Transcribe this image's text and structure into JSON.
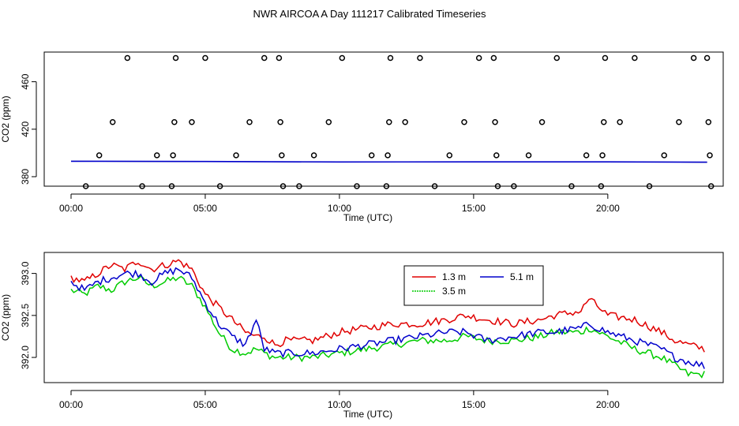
{
  "page_title": "NWR AIRCOA A  Day 111217  Calibrated Timeseries",
  "colors": {
    "red": "#e00000",
    "green": "#00cc00",
    "blue": "#0000cc",
    "axis": "#000000"
  },
  "chart_data": [
    {
      "type": "scatter",
      "title": "",
      "xlabel": "Time (UTC)",
      "ylabel": "CO2 (ppm)",
      "xlim": [
        -1.0,
        24.3
      ],
      "ylim": [
        372,
        485
      ],
      "x_ticks": [
        0,
        5,
        10,
        15,
        20
      ],
      "x_tick_labels": [
        "00:00",
        "05:00",
        "10:00",
        "15:00",
        "20:00"
      ],
      "y_ticks": [
        380,
        420,
        460
      ],
      "y_tick_labels": [
        "380",
        "420",
        "460"
      ],
      "cal_points": [
        {
          "x": 0.55,
          "y": 372
        },
        {
          "x": 1.05,
          "y": 398
        },
        {
          "x": 1.55,
          "y": 426
        },
        {
          "x": 2.1,
          "y": 480
        },
        {
          "x": 2.65,
          "y": 372
        },
        {
          "x": 3.2,
          "y": 398
        },
        {
          "x": 3.75,
          "y": 372
        },
        {
          "x": 3.8,
          "y": 398
        },
        {
          "x": 3.85,
          "y": 426
        },
        {
          "x": 3.9,
          "y": 480
        },
        {
          "x": 4.5,
          "y": 426
        },
        {
          "x": 5.0,
          "y": 480
        },
        {
          "x": 5.55,
          "y": 372
        },
        {
          "x": 6.15,
          "y": 398
        },
        {
          "x": 6.65,
          "y": 426
        },
        {
          "x": 7.2,
          "y": 480
        },
        {
          "x": 7.75,
          "y": 480
        },
        {
          "x": 7.8,
          "y": 426
        },
        {
          "x": 7.85,
          "y": 398
        },
        {
          "x": 7.9,
          "y": 372
        },
        {
          "x": 8.5,
          "y": 372
        },
        {
          "x": 9.05,
          "y": 398
        },
        {
          "x": 9.6,
          "y": 426
        },
        {
          "x": 10.1,
          "y": 480
        },
        {
          "x": 10.65,
          "y": 372
        },
        {
          "x": 11.2,
          "y": 398
        },
        {
          "x": 11.75,
          "y": 372
        },
        {
          "x": 11.8,
          "y": 398
        },
        {
          "x": 11.85,
          "y": 426
        },
        {
          "x": 11.9,
          "y": 480
        },
        {
          "x": 12.45,
          "y": 426
        },
        {
          "x": 13.0,
          "y": 480
        },
        {
          "x": 13.55,
          "y": 372
        },
        {
          "x": 14.1,
          "y": 398
        },
        {
          "x": 14.65,
          "y": 426
        },
        {
          "x": 15.2,
          "y": 480
        },
        {
          "x": 15.75,
          "y": 480
        },
        {
          "x": 15.8,
          "y": 426
        },
        {
          "x": 15.85,
          "y": 398
        },
        {
          "x": 15.9,
          "y": 372
        },
        {
          "x": 16.5,
          "y": 372
        },
        {
          "x": 17.05,
          "y": 398
        },
        {
          "x": 17.55,
          "y": 426
        },
        {
          "x": 18.1,
          "y": 480
        },
        {
          "x": 18.65,
          "y": 372
        },
        {
          "x": 19.2,
          "y": 398
        },
        {
          "x": 19.75,
          "y": 372
        },
        {
          "x": 19.8,
          "y": 398
        },
        {
          "x": 19.85,
          "y": 426
        },
        {
          "x": 19.9,
          "y": 480
        },
        {
          "x": 20.45,
          "y": 426
        },
        {
          "x": 21.0,
          "y": 480
        },
        {
          "x": 21.55,
          "y": 372
        },
        {
          "x": 22.1,
          "y": 398
        },
        {
          "x": 22.65,
          "y": 426
        },
        {
          "x": 23.2,
          "y": 480
        },
        {
          "x": 23.7,
          "y": 480
        },
        {
          "x": 23.75,
          "y": 426
        },
        {
          "x": 23.8,
          "y": 398
        },
        {
          "x": 23.85,
          "y": 372
        }
      ],
      "baseline": {
        "x": [
          0,
          5,
          10,
          15,
          20,
          23.7
        ],
        "y": [
          393,
          392.8,
          392.4,
          392.5,
          392.5,
          392.2
        ]
      }
    },
    {
      "type": "line",
      "title": "",
      "xlabel": "Time (UTC)",
      "ylabel": "CO2 (ppm)",
      "xlim": [
        -1.0,
        24.3
      ],
      "ylim": [
        391.7,
        393.25
      ],
      "x_ticks": [
        0,
        5,
        10,
        15,
        20
      ],
      "x_tick_labels": [
        "00:00",
        "05:00",
        "10:00",
        "15:00",
        "20:00"
      ],
      "y_ticks": [
        392.0,
        392.5,
        393.0
      ],
      "y_tick_labels": [
        "392.0",
        "392.5",
        "393.0"
      ],
      "legend": {
        "placement": "top-right",
        "entries": [
          {
            "name": "1.3 m",
            "color": "red"
          },
          {
            "name": "5.1 m",
            "color": "blue"
          },
          {
            "name": "3.5 m",
            "color": "green"
          }
        ]
      },
      "key_points": {
        "x": [
          0,
          0.5,
          1,
          1.5,
          2,
          2.5,
          3,
          3.5,
          4,
          4.5,
          5,
          5.5,
          6,
          6.5,
          6.9,
          7.2,
          7.6,
          8,
          9,
          10,
          11,
          12,
          13,
          14,
          14.7,
          15.5,
          16.5,
          17.5,
          18,
          19,
          19.3,
          20,
          21,
          22,
          22.5,
          23,
          23.6
        ],
        "series": [
          {
            "name": "1.3 m",
            "color": "red",
            "values": [
              392.95,
              392.9,
              393.0,
              393.1,
              393.05,
              393.15,
              393.05,
              393.1,
              393.15,
              393.05,
              392.75,
              392.6,
              392.45,
              392.3,
              392.25,
              392.25,
              392.15,
              392.2,
              392.2,
              392.3,
              392.35,
              392.4,
              392.4,
              392.45,
              392.5,
              392.45,
              392.4,
              392.45,
              392.5,
              392.55,
              392.7,
              392.5,
              392.45,
              392.3,
              392.2,
              392.15,
              392.1
            ]
          },
          {
            "name": "5.1 m",
            "color": "blue",
            "values": [
              392.9,
              392.8,
              392.9,
              392.95,
              393.0,
              393.0,
              392.9,
              393.0,
              393.05,
              392.95,
              392.65,
              392.4,
              392.25,
              392.15,
              392.45,
              392.1,
              392.05,
              392.05,
              392.05,
              392.1,
              392.15,
              392.2,
              392.25,
              392.3,
              392.3,
              392.2,
              392.25,
              392.3,
              392.3,
              392.35,
              392.4,
              392.3,
              392.2,
              392.1,
              392.0,
              391.95,
              391.9
            ]
          },
          {
            "name": "3.5 m",
            "color": "green",
            "values": [
              392.8,
              392.75,
              392.85,
              392.8,
              392.9,
              392.95,
              392.85,
              392.9,
              392.95,
              392.85,
              392.6,
              392.3,
              392.1,
              392.05,
              392.1,
              392.05,
              392.0,
              392.0,
              392.0,
              392.05,
              392.1,
              392.15,
              392.2,
              392.2,
              392.25,
              392.2,
              392.2,
              392.25,
              392.3,
              392.3,
              392.35,
              392.25,
              392.1,
              392.0,
              391.9,
              391.8,
              391.8
            ]
          }
        ]
      }
    }
  ]
}
